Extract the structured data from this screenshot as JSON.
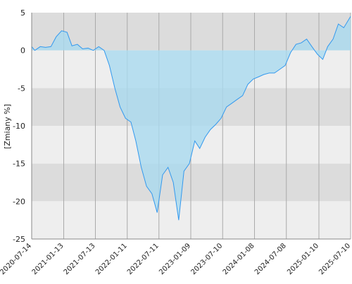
{
  "chart_data": {
    "type": "area",
    "ylabel": "[Zmiany %]",
    "x": [
      "2020-07-14",
      "2020-08-01",
      "2020-09-01",
      "2020-10-01",
      "2020-11-01",
      "2020-12-01",
      "2021-01-01",
      "2021-02-01",
      "2021-03-01",
      "2021-04-01",
      "2021-05-01",
      "2021-06-01",
      "2021-07-01",
      "2021-08-01",
      "2021-09-01",
      "2021-10-01",
      "2021-11-01",
      "2021-12-01",
      "2022-01-01",
      "2022-02-01",
      "2022-03-01",
      "2022-04-01",
      "2022-05-01",
      "2022-06-01",
      "2022-07-01",
      "2022-08-01",
      "2022-09-01",
      "2022-10-01",
      "2022-11-01",
      "2022-12-01",
      "2023-01-01",
      "2023-02-01",
      "2023-03-01",
      "2023-04-01",
      "2023-05-01",
      "2023-06-01",
      "2023-07-01",
      "2023-08-01",
      "2023-09-01",
      "2023-10-01",
      "2023-11-01",
      "2023-12-01",
      "2024-01-01",
      "2024-02-01",
      "2024-03-01",
      "2024-04-01",
      "2024-05-01",
      "2024-06-01",
      "2024-07-01",
      "2024-08-01",
      "2024-09-01",
      "2024-10-01",
      "2024-11-01",
      "2024-12-01",
      "2025-01-01",
      "2025-02-01",
      "2025-03-01",
      "2025-04-01",
      "2025-05-01",
      "2025-06-01",
      "2025-07-10"
    ],
    "values": [
      0.5,
      0,
      0.5,
      0.4,
      0.5,
      1.8,
      2.6,
      2.4,
      0.6,
      0.8,
      0.2,
      0.3,
      0,
      0.5,
      0,
      -2,
      -5,
      -7.5,
      -9,
      -9.5,
      -12,
      -15.5,
      -18,
      -19,
      -21.5,
      -16.5,
      -15.5,
      -17.5,
      -22.5,
      -16,
      -15,
      -12,
      -13,
      -11.5,
      -10.5,
      -9.8,
      -9,
      -7.5,
      -7,
      -6.5,
      -6,
      -4.5,
      -3.8,
      -3.5,
      -3.2,
      -3,
      -3,
      -2.5,
      -2,
      -0.3,
      0.8,
      1,
      1.5,
      0.5,
      -0.5,
      -1.2,
      0.5,
      1.5,
      3.5,
      3,
      4.5
    ],
    "color": "#3399ee",
    "fill": "#a9d9ef",
    "xlim": [
      "2020-07-14",
      "2025-07-10"
    ],
    "xticks": [
      "2020-07-14",
      "2021-01-13",
      "2021-07-13",
      "2022-01-11",
      "2022-07-11",
      "2023-01-09",
      "2023-07-10",
      "2024-01-08",
      "2024-07-08",
      "2025-01-10",
      "2025-07-10"
    ],
    "ylim": [
      -25,
      5
    ],
    "yticks": [
      5,
      0,
      -5,
      -10,
      -15,
      -20,
      -25
    ],
    "grid": true
  }
}
